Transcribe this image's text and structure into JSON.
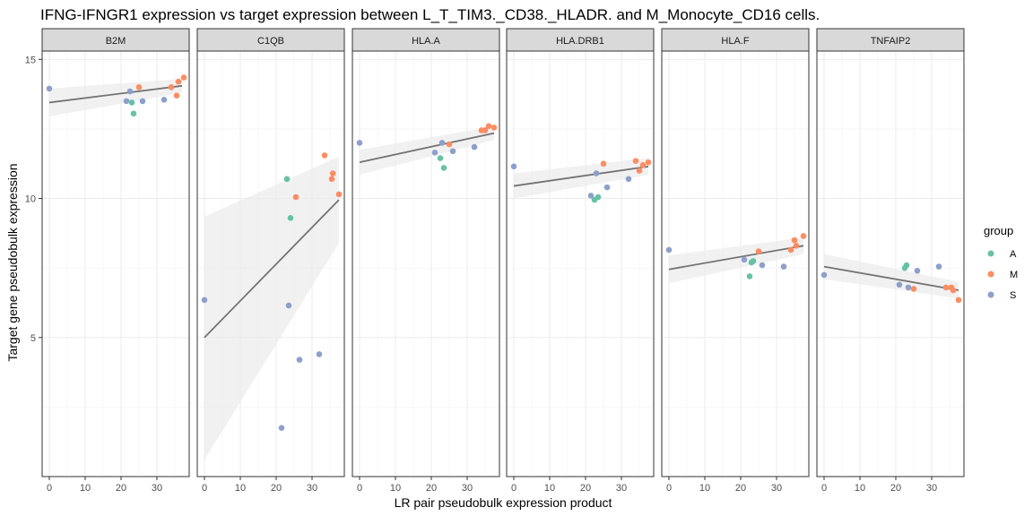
{
  "chart_data": {
    "type": "scatter",
    "title": "IFNG-IFNGR1 expression vs target expression between L_T_TIM3._CD38._HLADR. and M_Monocyte_CD16 cells.",
    "xlabel": "LR pair pseudobulk expression product",
    "ylabel": "Target gene pseudobulk expression",
    "xlim": [
      -2,
      39
    ],
    "ylim": [
      0,
      15.3
    ],
    "x_ticks": [
      0,
      10,
      20,
      30
    ],
    "y_ticks": [
      5,
      10,
      15
    ],
    "grid": true,
    "legend": {
      "title": "group",
      "position": "right",
      "entries": [
        {
          "label": "A",
          "color": "#66C2A5"
        },
        {
          "label": "M",
          "color": "#FC8D62"
        },
        {
          "label": "S",
          "color": "#8DA0CB"
        }
      ]
    },
    "colors": {
      "A": "#66C2A5",
      "M": "#FC8D62",
      "S": "#8DA0CB",
      "fit_line": "#737373",
      "ribbon": "#ebebeb"
    },
    "panels": [
      {
        "name": "B2M",
        "fit": {
          "x": [
            0,
            37
          ],
          "y": [
            13.45,
            14.05
          ]
        },
        "band": {
          "upper": [
            13.95,
            14.3
          ],
          "lower": [
            12.95,
            13.8
          ]
        },
        "points": [
          {
            "x": 0,
            "y": 13.95,
            "group": "S"
          },
          {
            "x": 21.5,
            "y": 13.5,
            "group": "S"
          },
          {
            "x": 22.5,
            "y": 13.85,
            "group": "S"
          },
          {
            "x": 23,
            "y": 13.45,
            "group": "A"
          },
          {
            "x": 23.5,
            "y": 13.05,
            "group": "A"
          },
          {
            "x": 25,
            "y": 14.0,
            "group": "M"
          },
          {
            "x": 26,
            "y": 13.5,
            "group": "S"
          },
          {
            "x": 32,
            "y": 13.55,
            "group": "S"
          },
          {
            "x": 34,
            "y": 14.0,
            "group": "M"
          },
          {
            "x": 35.5,
            "y": 13.7,
            "group": "M"
          },
          {
            "x": 36,
            "y": 14.2,
            "group": "M"
          },
          {
            "x": 37.5,
            "y": 14.35,
            "group": "M"
          }
        ]
      },
      {
        "name": "C1QB",
        "fit": {
          "x": [
            0,
            37.5
          ],
          "y": [
            5.0,
            9.95
          ]
        },
        "band": {
          "upper": [
            9.35,
            11.5
          ],
          "lower": [
            0.6,
            8.4
          ]
        },
        "points": [
          {
            "x": 0,
            "y": 6.35,
            "group": "S"
          },
          {
            "x": 21.5,
            "y": 1.75,
            "group": "S"
          },
          {
            "x": 23,
            "y": 10.7,
            "group": "A"
          },
          {
            "x": 23.5,
            "y": 6.15,
            "group": "S"
          },
          {
            "x": 24,
            "y": 9.3,
            "group": "A"
          },
          {
            "x": 25.5,
            "y": 10.05,
            "group": "M"
          },
          {
            "x": 26.5,
            "y": 4.2,
            "group": "S"
          },
          {
            "x": 32,
            "y": 4.4,
            "group": "S"
          },
          {
            "x": 33.5,
            "y": 11.55,
            "group": "M"
          },
          {
            "x": 35.5,
            "y": 10.7,
            "group": "M"
          },
          {
            "x": 35.8,
            "y": 10.9,
            "group": "M"
          },
          {
            "x": 37.5,
            "y": 10.15,
            "group": "M"
          }
        ]
      },
      {
        "name": "HLA.A",
        "fit": {
          "x": [
            0,
            37.5
          ],
          "y": [
            11.3,
            12.35
          ]
        },
        "band": {
          "upper": [
            11.75,
            12.6
          ],
          "lower": [
            10.85,
            12.1
          ]
        },
        "points": [
          {
            "x": 0,
            "y": 12.0,
            "group": "S"
          },
          {
            "x": 21,
            "y": 11.65,
            "group": "S"
          },
          {
            "x": 22.5,
            "y": 11.45,
            "group": "A"
          },
          {
            "x": 23,
            "y": 12.0,
            "group": "S"
          },
          {
            "x": 23.5,
            "y": 11.1,
            "group": "A"
          },
          {
            "x": 25,
            "y": 11.95,
            "group": "M"
          },
          {
            "x": 26,
            "y": 11.7,
            "group": "S"
          },
          {
            "x": 32,
            "y": 11.85,
            "group": "S"
          },
          {
            "x": 34,
            "y": 12.45,
            "group": "M"
          },
          {
            "x": 35,
            "y": 12.45,
            "group": "M"
          },
          {
            "x": 36,
            "y": 12.6,
            "group": "M"
          },
          {
            "x": 37.5,
            "y": 12.55,
            "group": "M"
          }
        ]
      },
      {
        "name": "HLA.DRB1",
        "fit": {
          "x": [
            0,
            37.5
          ],
          "y": [
            10.45,
            11.15
          ]
        },
        "band": {
          "upper": [
            10.9,
            11.45
          ],
          "lower": [
            10.0,
            10.85
          ]
        },
        "points": [
          {
            "x": 0,
            "y": 11.15,
            "group": "S"
          },
          {
            "x": 21.5,
            "y": 10.1,
            "group": "S"
          },
          {
            "x": 22.5,
            "y": 9.95,
            "group": "A"
          },
          {
            "x": 23,
            "y": 10.9,
            "group": "S"
          },
          {
            "x": 23.5,
            "y": 10.05,
            "group": "A"
          },
          {
            "x": 25,
            "y": 11.25,
            "group": "M"
          },
          {
            "x": 26,
            "y": 10.4,
            "group": "S"
          },
          {
            "x": 32,
            "y": 10.7,
            "group": "S"
          },
          {
            "x": 34,
            "y": 11.35,
            "group": "M"
          },
          {
            "x": 35,
            "y": 11.0,
            "group": "M"
          },
          {
            "x": 36,
            "y": 11.2,
            "group": "M"
          },
          {
            "x": 37.5,
            "y": 11.3,
            "group": "M"
          }
        ]
      },
      {
        "name": "HLA.F",
        "fit": {
          "x": [
            0,
            37.5
          ],
          "y": [
            7.45,
            8.3
          ]
        },
        "band": {
          "upper": [
            7.95,
            8.6
          ],
          "lower": [
            6.95,
            8.0
          ]
        },
        "points": [
          {
            "x": 0,
            "y": 8.15,
            "group": "S"
          },
          {
            "x": 21,
            "y": 7.8,
            "group": "S"
          },
          {
            "x": 22.5,
            "y": 7.2,
            "group": "A"
          },
          {
            "x": 23,
            "y": 7.7,
            "group": "A"
          },
          {
            "x": 23.5,
            "y": 7.75,
            "group": "A"
          },
          {
            "x": 25,
            "y": 8.1,
            "group": "M"
          },
          {
            "x": 26,
            "y": 7.6,
            "group": "S"
          },
          {
            "x": 32,
            "y": 7.55,
            "group": "S"
          },
          {
            "x": 34,
            "y": 8.15,
            "group": "M"
          },
          {
            "x": 35,
            "y": 8.5,
            "group": "M"
          },
          {
            "x": 35.5,
            "y": 8.3,
            "group": "M"
          },
          {
            "x": 37.5,
            "y": 8.65,
            "group": "M"
          }
        ]
      },
      {
        "name": "TNFAIP2",
        "fit": {
          "x": [
            0,
            37.5
          ],
          "y": [
            7.55,
            6.7
          ]
        },
        "band": {
          "upper": [
            8.0,
            7.0
          ],
          "lower": [
            7.1,
            6.4
          ]
        },
        "points": [
          {
            "x": 0,
            "y": 7.25,
            "group": "S"
          },
          {
            "x": 21,
            "y": 6.9,
            "group": "S"
          },
          {
            "x": 22.5,
            "y": 7.5,
            "group": "A"
          },
          {
            "x": 23,
            "y": 7.6,
            "group": "A"
          },
          {
            "x": 23.5,
            "y": 6.8,
            "group": "S"
          },
          {
            "x": 25,
            "y": 6.75,
            "group": "M"
          },
          {
            "x": 26,
            "y": 7.4,
            "group": "S"
          },
          {
            "x": 32,
            "y": 7.55,
            "group": "S"
          },
          {
            "x": 34,
            "y": 6.8,
            "group": "M"
          },
          {
            "x": 35.5,
            "y": 6.8,
            "group": "M"
          },
          {
            "x": 36,
            "y": 6.7,
            "group": "M"
          },
          {
            "x": 37.5,
            "y": 6.35,
            "group": "M"
          }
        ]
      }
    ]
  }
}
